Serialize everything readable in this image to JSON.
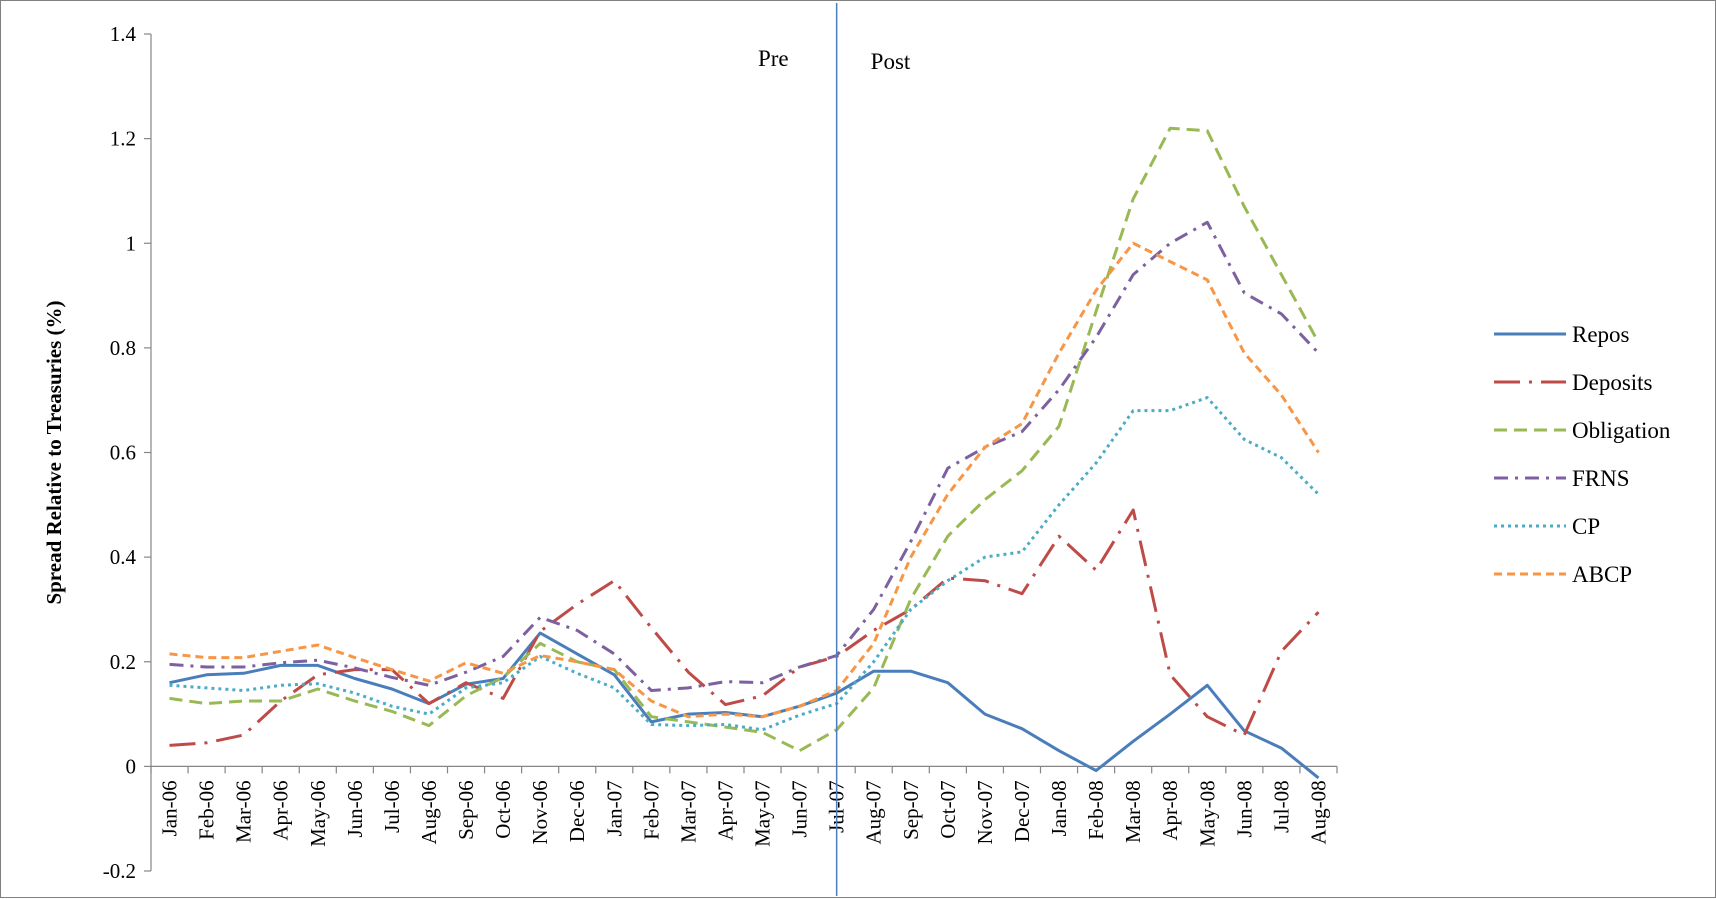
{
  "chart_data": {
    "type": "line",
    "title": "",
    "xlabel": "",
    "ylabel": "Spread Relative to Treasuries (%)",
    "ylim": [
      -0.2,
      1.4
    ],
    "yticks": [
      -0.2,
      0,
      0.2,
      0.4,
      0.6,
      0.8,
      1,
      1.2,
      1.4
    ],
    "ytick_labels": [
      "-0.2",
      "0",
      "0.2",
      "0.4",
      "0.6",
      "0.8",
      "1",
      "1.2",
      "1.4"
    ],
    "grid": false,
    "legend_position": "right",
    "categories": [
      "Jan-06",
      "Feb-06",
      "Mar-06",
      "Apr-06",
      "May-06",
      "Jun-06",
      "Jul-06",
      "Aug-06",
      "Sep-06",
      "Oct-06",
      "Nov-06",
      "Dec-06",
      "Jan-07",
      "Feb-07",
      "Mar-07",
      "Apr-07",
      "May-07",
      "Jun-07",
      "Jul-07",
      "Aug-07",
      "Sep-07",
      "Oct-07",
      "Nov-07",
      "Dec-07",
      "Jan-08",
      "Feb-08",
      "Mar-08",
      "Apr-08",
      "May-08",
      "Jun-08",
      "Jul-08",
      "Aug-08"
    ],
    "annotations": [
      {
        "text": "Pre"
      },
      {
        "text": "Post"
      }
    ],
    "divider_after_category": "Jul-07",
    "series": [
      {
        "name": "Repos",
        "color": "#4a7ebb",
        "style": "solid",
        "values": [
          0.16,
          0.175,
          0.178,
          0.193,
          0.193,
          0.168,
          0.148,
          0.12,
          0.157,
          0.168,
          0.255,
          0.215,
          0.175,
          0.085,
          0.1,
          0.103,
          0.095,
          0.115,
          0.14,
          0.182,
          0.182,
          0.16,
          0.1,
          0.072,
          0.03,
          -0.008,
          0.048,
          0.1,
          0.155,
          0.068,
          0.035,
          -0.022
        ]
      },
      {
        "name": "Deposits",
        "color": "#be4b48",
        "style": "longdashdot",
        "values": [
          0.04,
          0.045,
          0.06,
          0.125,
          0.175,
          0.185,
          0.185,
          0.12,
          0.16,
          0.13,
          0.258,
          0.31,
          0.355,
          0.265,
          0.18,
          0.118,
          0.135,
          0.19,
          0.21,
          0.26,
          0.3,
          0.36,
          0.355,
          0.33,
          0.44,
          0.375,
          0.49,
          0.175,
          0.095,
          0.06,
          0.22,
          0.295
        ]
      },
      {
        "name": "Obligation",
        "color": "#98b954",
        "style": "dash",
        "values": [
          0.13,
          0.12,
          0.125,
          0.125,
          0.148,
          0.125,
          0.105,
          0.078,
          0.135,
          0.17,
          0.235,
          0.2,
          0.185,
          0.095,
          0.085,
          0.075,
          0.065,
          0.03,
          0.07,
          0.15,
          0.32,
          0.44,
          0.51,
          0.565,
          0.65,
          0.87,
          1.085,
          1.22,
          1.215,
          1.07,
          0.94,
          0.81
        ]
      },
      {
        "name": "FRNS",
        "color": "#7d60a0",
        "style": "dashdot",
        "values": [
          0.195,
          0.19,
          0.19,
          0.198,
          0.203,
          0.188,
          0.17,
          0.155,
          0.18,
          0.21,
          0.285,
          0.26,
          0.215,
          0.145,
          0.15,
          0.162,
          0.16,
          0.19,
          0.212,
          0.3,
          0.43,
          0.57,
          0.61,
          0.64,
          0.72,
          0.82,
          0.94,
          1.0,
          1.04,
          0.905,
          0.865,
          0.79
        ]
      },
      {
        "name": "CP",
        "color": "#4bacc6",
        "style": "dot",
        "values": [
          0.155,
          0.15,
          0.145,
          0.155,
          0.158,
          0.14,
          0.115,
          0.1,
          0.15,
          0.16,
          0.21,
          0.178,
          0.15,
          0.08,
          0.078,
          0.08,
          0.07,
          0.098,
          0.12,
          0.2,
          0.3,
          0.355,
          0.4,
          0.41,
          0.5,
          0.58,
          0.68,
          0.68,
          0.705,
          0.625,
          0.59,
          0.52
        ]
      },
      {
        "name": "ABCP",
        "color": "#f79646",
        "style": "shortdash",
        "values": [
          0.215,
          0.208,
          0.208,
          0.22,
          0.232,
          0.208,
          0.185,
          0.163,
          0.198,
          0.178,
          0.212,
          0.2,
          0.185,
          0.125,
          0.095,
          0.1,
          0.095,
          0.115,
          0.145,
          0.235,
          0.4,
          0.52,
          0.61,
          0.655,
          0.79,
          0.91,
          1.0,
          0.965,
          0.93,
          0.79,
          0.71,
          0.6
        ]
      }
    ]
  }
}
